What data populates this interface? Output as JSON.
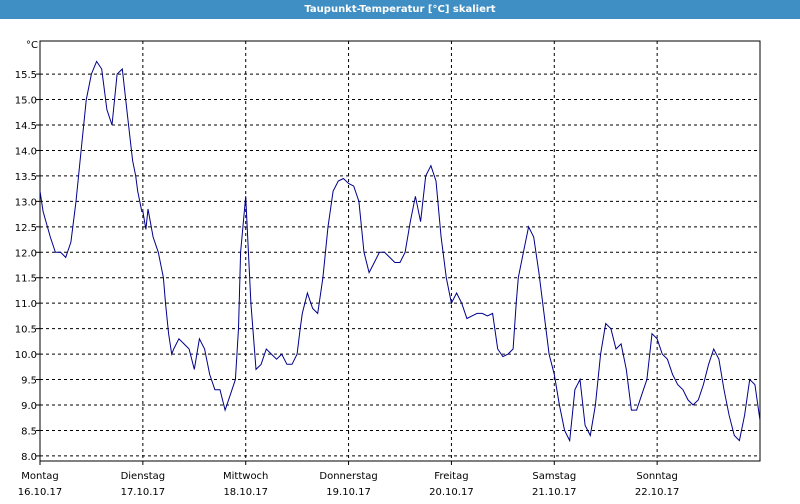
{
  "window": {
    "title": "Taupunkt-Temperatur [°C] skaliert"
  },
  "colors": {
    "title_bar": "#3f8fc4",
    "series_line": "#00008b",
    "grid": "#000000"
  },
  "chart_data": {
    "type": "line",
    "title": "Taupunkt-Temperatur [°C] skaliert",
    "ylabel": "°C",
    "ylim": [
      7.9,
      16.15
    ],
    "xlim": [
      0,
      7
    ],
    "grid": true,
    "grid_style": "dashed",
    "y_ticks": [
      "8.0",
      "8.5",
      "9.0",
      "9.5",
      "10.0",
      "10.5",
      "11.0",
      "11.5",
      "12.0",
      "12.5",
      "13.0",
      "13.5",
      "14.0",
      "14.5",
      "15.0",
      "15.5"
    ],
    "x_ticks": [
      {
        "day": "Montag",
        "date": "16.10.17"
      },
      {
        "day": "Dienstag",
        "date": "17.10.17"
      },
      {
        "day": "Mittwoch",
        "date": "18.10.17"
      },
      {
        "day": "Donnerstag",
        "date": "19.10.17"
      },
      {
        "day": "Freitag",
        "date": "20.10.17"
      },
      {
        "day": "Samstag",
        "date": "21.10.17"
      },
      {
        "day": "Sonntag",
        "date": "22.10.17"
      }
    ],
    "series": [
      {
        "x": [
          0.0,
          0.03,
          0.1,
          0.15,
          0.2,
          0.25,
          0.3,
          0.35,
          0.4,
          0.45,
          0.5,
          0.55,
          0.6,
          0.65,
          0.7,
          0.75,
          0.8,
          0.85,
          0.9,
          0.93,
          0.95,
          0.99,
          1.0,
          1.03,
          1.05,
          1.1,
          1.15,
          1.2,
          1.22,
          1.25,
          1.28,
          1.3,
          1.35,
          1.4,
          1.45,
          1.5,
          1.55,
          1.6,
          1.65,
          1.7,
          1.75,
          1.8,
          1.85,
          1.9,
          1.93,
          1.95,
          2.0,
          2.05,
          2.1,
          2.15,
          2.2,
          2.25,
          2.3,
          2.35,
          2.4,
          2.45,
          2.5,
          2.53,
          2.55,
          2.6,
          2.65,
          2.7,
          2.75,
          2.8,
          2.85,
          2.9,
          2.95,
          3.0,
          3.05,
          3.1,
          3.15,
          3.2,
          3.25,
          3.3,
          3.35,
          3.4,
          3.45,
          3.5,
          3.55,
          3.6,
          3.65,
          3.7,
          3.75,
          3.8,
          3.85,
          3.9,
          3.95,
          4.0,
          4.05,
          4.1,
          4.15,
          4.2,
          4.25,
          4.3,
          4.35,
          4.4,
          4.45,
          4.5,
          4.55,
          4.6,
          4.63,
          4.65,
          4.7,
          4.75,
          4.8,
          4.85,
          4.9,
          4.95,
          5.0,
          5.05,
          5.1,
          5.15,
          5.2,
          5.25,
          5.3,
          5.35,
          5.4,
          5.45,
          5.5,
          5.55,
          5.6,
          5.65,
          5.7,
          5.75,
          5.8,
          5.85,
          5.9,
          5.95,
          6.0,
          6.05,
          6.1,
          6.15,
          6.2,
          6.25,
          6.3,
          6.35,
          6.4,
          6.45,
          6.5,
          6.55,
          6.6,
          6.65,
          6.7,
          6.75,
          6.8,
          6.85,
          6.9,
          6.95,
          7.0
        ],
        "y": [
          13.2,
          12.8,
          12.3,
          12.0,
          12.0,
          11.9,
          12.2,
          13.0,
          14.0,
          15.0,
          15.5,
          15.75,
          15.6,
          14.8,
          14.5,
          15.5,
          15.6,
          14.7,
          13.8,
          13.5,
          13.2,
          12.8,
          12.8,
          12.45,
          12.85,
          12.3,
          12.0,
          11.5,
          11.0,
          10.4,
          10.0,
          10.1,
          10.3,
          10.2,
          10.1,
          9.7,
          10.3,
          10.1,
          9.6,
          9.3,
          9.3,
          8.9,
          9.2,
          9.5,
          10.5,
          12.0,
          13.1,
          11.0,
          9.7,
          9.8,
          10.1,
          10.0,
          9.9,
          10.0,
          9.8,
          9.8,
          10.0,
          10.5,
          10.8,
          11.2,
          10.9,
          10.8,
          11.5,
          12.5,
          13.2,
          13.4,
          13.45,
          13.35,
          13.3,
          13.0,
          12.0,
          11.6,
          11.8,
          12.0,
          12.0,
          11.9,
          11.8,
          11.8,
          12.0,
          12.6,
          13.1,
          12.6,
          13.5,
          13.7,
          13.4,
          12.3,
          11.5,
          11.0,
          11.2,
          11.0,
          10.7,
          10.75,
          10.8,
          10.8,
          10.75,
          10.8,
          10.1,
          9.95,
          10.0,
          10.1,
          11.0,
          11.5,
          12.0,
          12.5,
          12.3,
          11.6,
          10.8,
          10.0,
          9.6,
          9.0,
          8.5,
          8.3,
          9.3,
          9.5,
          8.6,
          8.4,
          9.0,
          10.0,
          10.6,
          10.5,
          10.1,
          10.2,
          9.7,
          8.9,
          8.9,
          9.2,
          9.5,
          10.4,
          10.3,
          10.0,
          9.9,
          9.6,
          9.4,
          9.3,
          9.1,
          9.0,
          9.1,
          9.4,
          9.8,
          10.1,
          9.9,
          9.3,
          8.8,
          8.4,
          8.3,
          8.8,
          9.5,
          9.4,
          8.7
        ]
      }
    ]
  }
}
